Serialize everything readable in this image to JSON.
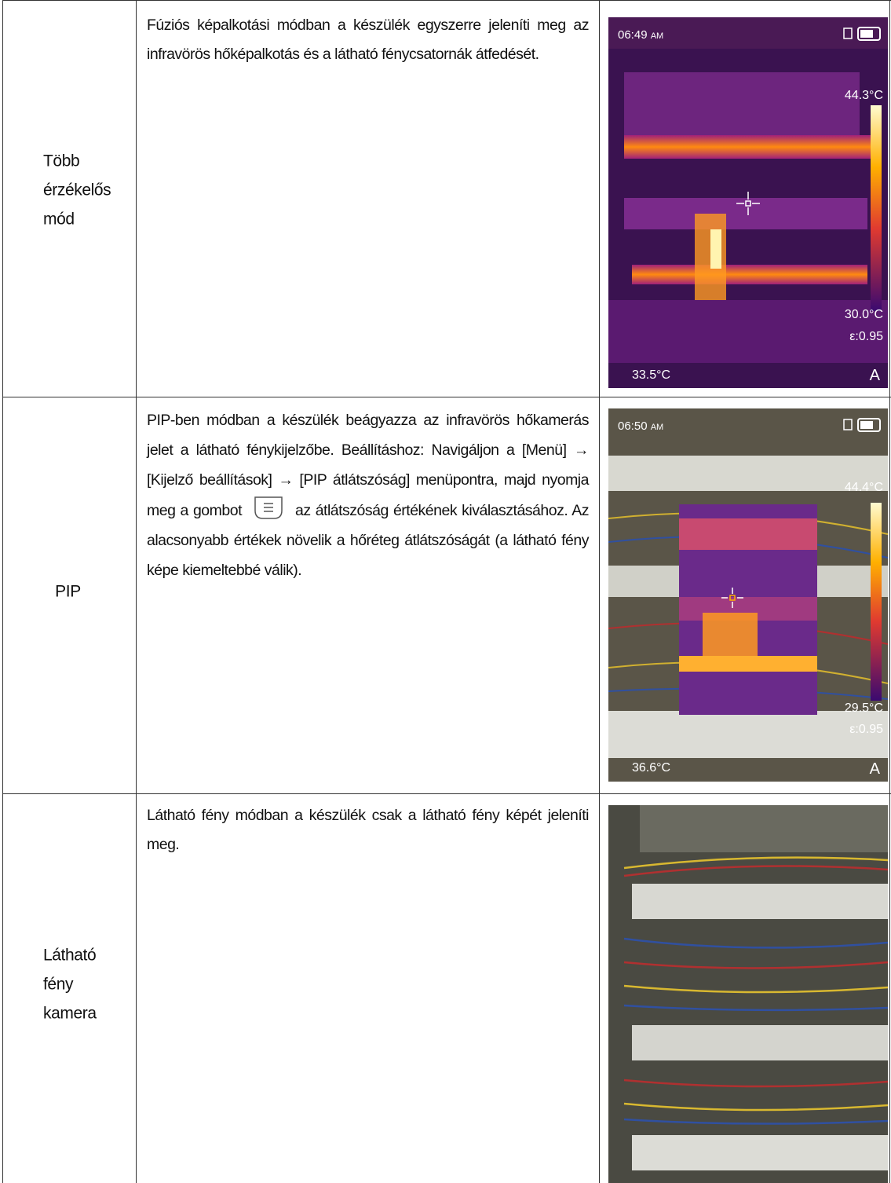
{
  "table": {
    "rows": [
      {
        "label": "Több érzékelős mód",
        "description": [
          "Fúziós képalkotási módban a készülék egyszerre jeleníti meg az infravörös hőképalkotás és a látható fénycsatornák átfedését."
        ],
        "image": {
          "time": "06:49",
          "meridiem": "AM",
          "max_temp": "44.3°C",
          "min_temp": "30.0°C",
          "emissivity": "ε:0.95",
          "spot_temp": "33.5°C",
          "mode": "A"
        }
      },
      {
        "label": "PIP",
        "description": [
          "PIP-ben módban a készülék beágyazza az infravörös hőkamerás jelet a látható fénykijelzőbe. Beállításhoz: Navigáljon a [Menü] → [Kijelző beállítások] → [PIP átlátszóság] menüpontra, majd nyomja meg a gombot",
          "az átlátszóság értékének kiválasztásához. Az alacsonyabb értékek növelik a hőréteg átlátszóságát (a látható fény képe kiemeltebbé válik)."
        ],
        "image": {
          "time": "06:50",
          "meridiem": "AM",
          "max_temp": "44.4°C",
          "min_temp": "29.5°C",
          "emissivity": "ε:0.95",
          "spot_temp": "36.6°C",
          "mode": "A"
        }
      },
      {
        "label": "Látható fény kamera",
        "description": [
          "Látható fény módban a készülék csak a látható fény képét jeleníti meg."
        ]
      }
    ]
  }
}
